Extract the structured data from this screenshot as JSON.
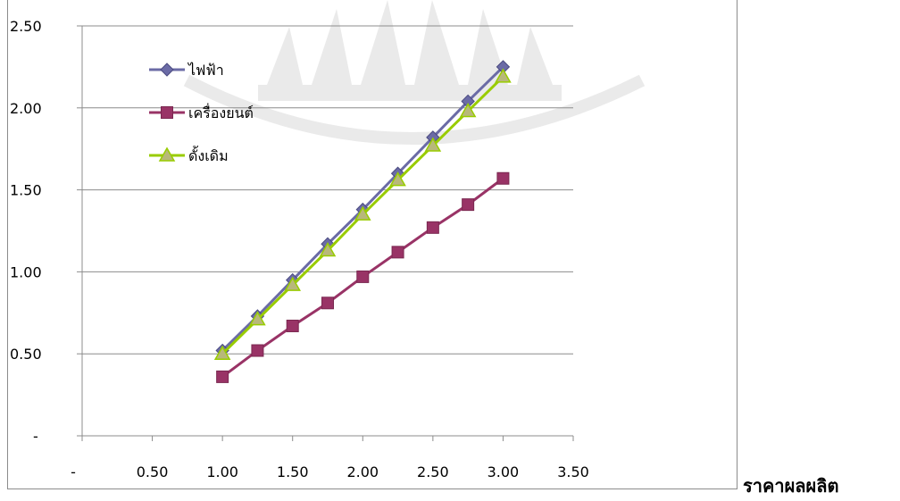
{
  "chart_data": {
    "type": "line",
    "title": "",
    "xlabel": "ราคาผลผลิต",
    "ylabel": "",
    "xlim": [
      0,
      3.5
    ],
    "ylim": [
      0,
      2.5
    ],
    "x_ticks": [
      {
        "value": 0,
        "label": "-"
      },
      {
        "value": 0.5,
        "label": "0.50"
      },
      {
        "value": 1.0,
        "label": "1.00"
      },
      {
        "value": 1.5,
        "label": "1.50"
      },
      {
        "value": 2.0,
        "label": "2.00"
      },
      {
        "value": 2.5,
        "label": "2.50"
      },
      {
        "value": 3.0,
        "label": "3.00"
      },
      {
        "value": 3.5,
        "label": "3.50"
      }
    ],
    "y_ticks": [
      {
        "value": 0,
        "label": "-"
      },
      {
        "value": 0.5,
        "label": "0.50"
      },
      {
        "value": 1.0,
        "label": "1.00"
      },
      {
        "value": 1.5,
        "label": "1.50"
      },
      {
        "value": 2.0,
        "label": "2.00"
      },
      {
        "value": 2.5,
        "label": "2.50"
      }
    ],
    "grid": "horizontal",
    "legend_position": "top-left",
    "x": [
      1.0,
      1.25,
      1.5,
      1.75,
      2.0,
      2.25,
      2.5,
      2.75,
      3.0
    ],
    "series": [
      {
        "name": "ไฟฟ้า",
        "marker": "diamond",
        "color": "#6b6ba6",
        "values": [
          0.52,
          0.73,
          0.95,
          1.17,
          1.38,
          1.6,
          1.82,
          2.04,
          2.25
        ]
      },
      {
        "name": "เครื่องยนต์",
        "marker": "square",
        "color": "#993366",
        "values": [
          0.36,
          0.52,
          0.67,
          0.81,
          0.97,
          1.12,
          1.27,
          1.41,
          1.57
        ]
      },
      {
        "name": "ดั้งเดิม",
        "marker": "triangle",
        "color": "#99cc00",
        "values": [
          0.5,
          0.71,
          0.92,
          1.13,
          1.35,
          1.56,
          1.77,
          1.98,
          2.19
        ]
      }
    ]
  }
}
